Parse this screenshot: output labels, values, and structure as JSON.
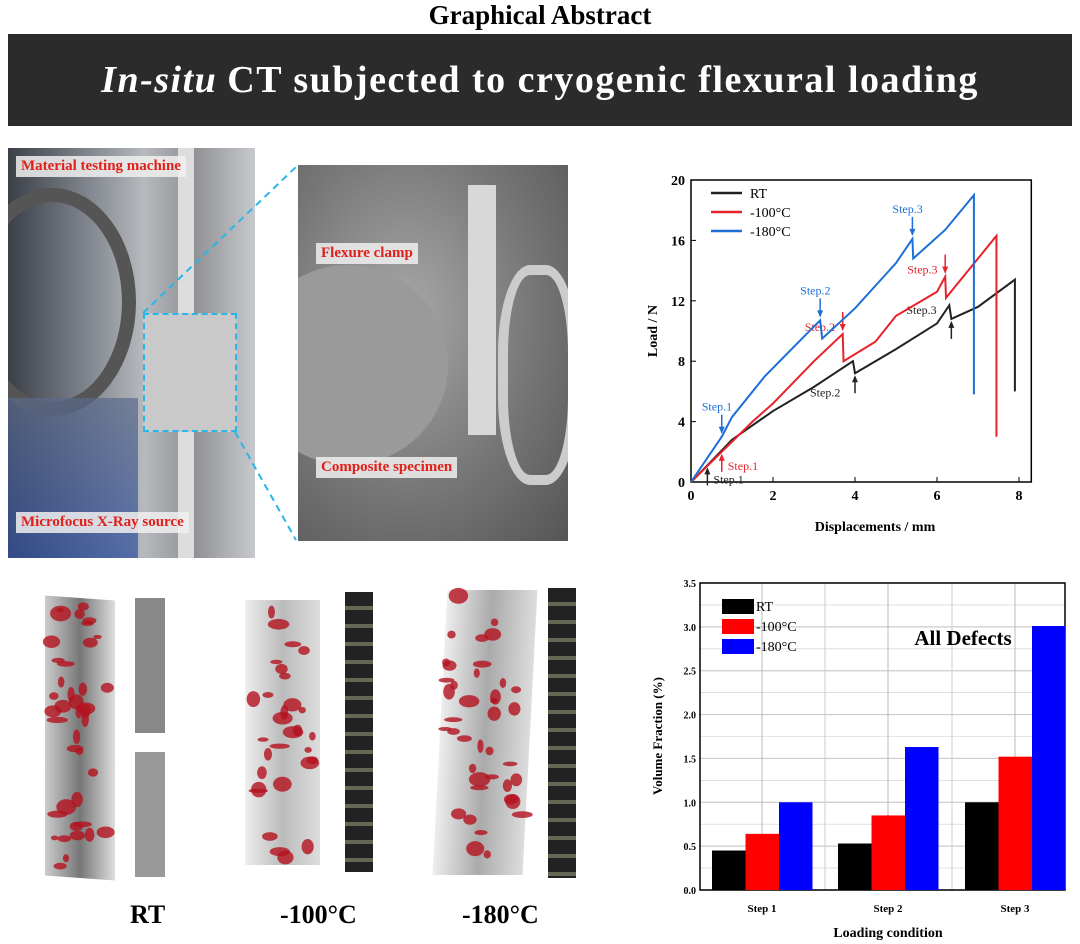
{
  "title": "Graphical Abstract",
  "banner": {
    "italic": "In-situ",
    "rest": "CT subjected to cryogenic flexural loading"
  },
  "photo1": {
    "label_top": "Material testing machine",
    "label_bottom": "Microfocus X-Ray source"
  },
  "photo2": {
    "label_top": "Flexure clamp",
    "label_bottom": "Composite specimen"
  },
  "ct_renders": {
    "labels": [
      "RT",
      "-100°C",
      "-180°C"
    ]
  },
  "colors": {
    "RT": "#222222",
    "m100": "#e8222a",
    "m180": "#1b6fd6",
    "bar_rt": "#000000",
    "bar_m100": "#ff0000",
    "bar_m180": "#0000ff"
  },
  "chart_data": [
    {
      "type": "line",
      "xlabel": "Displacements / mm",
      "ylabel": "Load / N",
      "xlim": [
        0,
        8.3
      ],
      "ylim": [
        0,
        20
      ],
      "xticks": [
        "0",
        "2",
        "4",
        "6",
        "8"
      ],
      "yticks": [
        "0",
        "4",
        "8",
        "12",
        "16",
        "20"
      ],
      "legend": "top-left",
      "series": [
        {
          "name": "RT",
          "points": [
            [
              0,
              0
            ],
            [
              0.4,
              1.1
            ],
            [
              1,
              2.8
            ],
            [
              2,
              4.7
            ],
            [
              3,
              6.3
            ],
            [
              3.95,
              8.0
            ],
            [
              4.0,
              7.2
            ],
            [
              5,
              8.8
            ],
            [
              6,
              10.5
            ],
            [
              6.3,
              11.7
            ],
            [
              6.35,
              10.8
            ],
            [
              7,
              11.6
            ],
            [
              7.9,
              13.4
            ],
            [
              7.9,
              6
            ]
          ],
          "annotations": [
            {
              "text": "Step.1",
              "x": 0.4,
              "y": 1.1
            },
            {
              "text": "Step.2",
              "x": 4.0,
              "y": 7.2
            },
            {
              "text": "Step.3",
              "x": 6.35,
              "y": 10.8
            }
          ]
        },
        {
          "name": "-100°C",
          "points": [
            [
              0,
              0
            ],
            [
              0.75,
              2
            ],
            [
              1.5,
              4
            ],
            [
              2,
              5.2
            ],
            [
              3,
              8
            ],
            [
              3.7,
              9.8
            ],
            [
              3.72,
              8
            ],
            [
              4.5,
              9.3
            ],
            [
              5,
              11
            ],
            [
              6,
              12.6
            ],
            [
              6.2,
              13.6
            ],
            [
              6.22,
              12.2
            ],
            [
              7,
              14.8
            ],
            [
              7.45,
              16.3
            ],
            [
              7.45,
              3
            ]
          ],
          "annotations": [
            {
              "text": "Step.1",
              "x": 0.75,
              "y": 2
            },
            {
              "text": "Step.2",
              "x": 3.7,
              "y": 9.8
            },
            {
              "text": "Step.3",
              "x": 6.2,
              "y": 13.6
            }
          ]
        },
        {
          "name": "-180°C",
          "points": [
            [
              0,
              0
            ],
            [
              0.75,
              3
            ],
            [
              1,
              4.3
            ],
            [
              1.8,
              7
            ],
            [
              3,
              10.3
            ],
            [
              3.15,
              10.7
            ],
            [
              3.2,
              9.5
            ],
            [
              4,
              11.5
            ],
            [
              5,
              14.5
            ],
            [
              5.4,
              16.1
            ],
            [
              5.42,
              14.8
            ],
            [
              6.2,
              16.7
            ],
            [
              6.9,
              19
            ],
            [
              6.9,
              5.8
            ]
          ],
          "annotations": [
            {
              "text": "Step.1",
              "x": 0.75,
              "y": 3
            },
            {
              "text": "Step.2",
              "x": 3.15,
              "y": 10.7
            },
            {
              "text": "Step.3",
              "x": 5.4,
              "y": 16.1
            }
          ]
        }
      ]
    },
    {
      "type": "bar",
      "title": "All Defects",
      "xlabel": "Loading condition",
      "ylabel": "Volume Fraction (%)",
      "ylim": [
        0,
        3.5
      ],
      "yticks": [
        "0.0",
        "0.5",
        "1.0",
        "1.5",
        "2.0",
        "2.5",
        "3.0",
        "3.5"
      ],
      "categories": [
        "Step 1",
        "Step 2",
        "Step 3"
      ],
      "legend": "top-left",
      "series": [
        {
          "name": "RT",
          "values": [
            0.45,
            0.53,
            1.0
          ]
        },
        {
          "name": "-100°C",
          "values": [
            0.64,
            0.85,
            1.52
          ]
        },
        {
          "name": "-180°C",
          "values": [
            1.0,
            1.63,
            3.01
          ]
        }
      ]
    }
  ]
}
